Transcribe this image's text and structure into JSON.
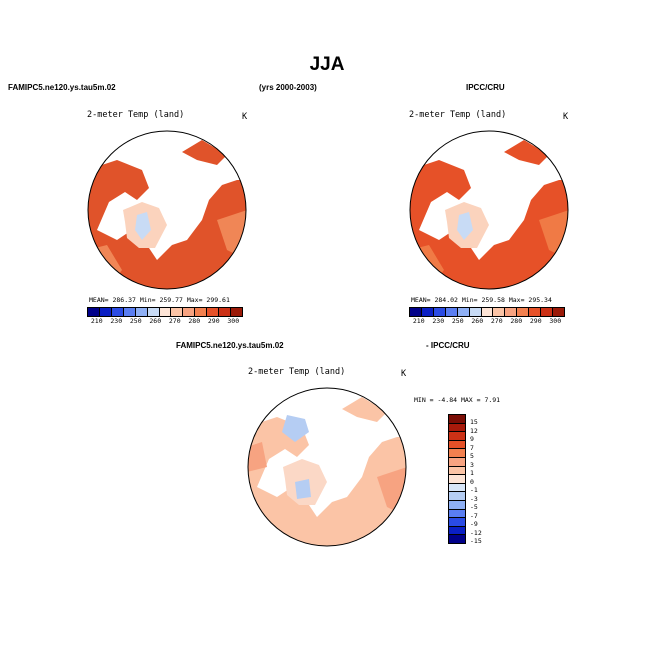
{
  "page": {
    "title": "JJA",
    "header_left": "FAMIPC5.ne120.ys.tau5m.02",
    "header_mid": "(yrs 2000-2003)",
    "header_right": "IPCC/CRU",
    "diff_left": "FAMIPC5.ne120.ys.tau5m.02",
    "diff_right": "- IPCC/CRU"
  },
  "panels": [
    {
      "label": "2-meter Temp (land)",
      "units": "K",
      "stats": "MEAN= 286.37  Min= 259.77  Max= 299.61",
      "fill_color": "#e0532a",
      "fill_light": "#f08656",
      "greenland_color": "#fbd3bd",
      "cold_color": "#c8dbf5"
    },
    {
      "label": "2-meter Temp (land)",
      "units": "K",
      "stats": "MEAN= 284.02  Min= 259.58  Max= 295.34",
      "fill_color": "#e65128",
      "fill_light": "#f07a45",
      "greenland_color": "#fbd3bd",
      "cold_color": "#c8dbf5"
    },
    {
      "label": "2-meter Temp (land)",
      "units": "K",
      "stats": "MIN =  -4.84 MAX =   7.91",
      "fill_color": "#fbc4a6",
      "fill_light": "#f7a381",
      "greenland_color": "#fbd8c6",
      "cold_color": "#b5cdf3"
    }
  ],
  "abs_colorbar": {
    "colors": [
      "#000089",
      "#0a1fc4",
      "#2a4be4",
      "#5a7ef2",
      "#8fb0f5",
      "#c8dbf5",
      "#fde4d6",
      "#fbc4a6",
      "#f7a381",
      "#f2804f",
      "#e65128",
      "#cc3116",
      "#9b1a08"
    ],
    "ticks": [
      "210",
      "230",
      "250",
      "260",
      "270",
      "280",
      "290",
      "300"
    ]
  },
  "diff_colorbar": {
    "colors": [
      "#7a0d05",
      "#a81a0b",
      "#cc3116",
      "#e65128",
      "#f2804f",
      "#f7a381",
      "#fbc4a6",
      "#fde4d6",
      "#d8e6f8",
      "#b5cdf3",
      "#8fb0f5",
      "#5a7ef2",
      "#2a4be4",
      "#0a1fc4",
      "#000089"
    ],
    "ticks": [
      "15",
      "12",
      "9",
      "7",
      "5",
      "3",
      "1",
      "0",
      "-1",
      "-3",
      "-5",
      "-7",
      "-9",
      "-12",
      "-15"
    ]
  }
}
